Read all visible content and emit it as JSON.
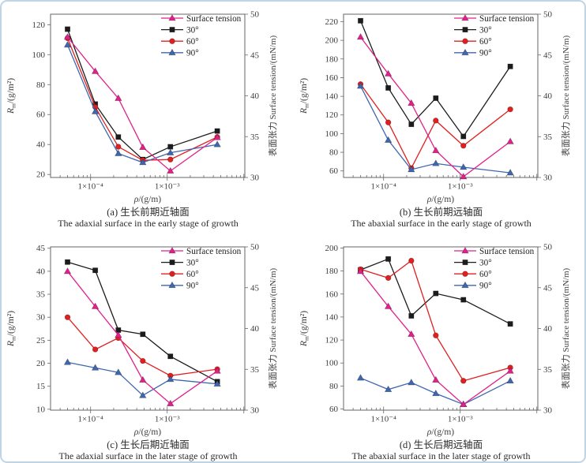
{
  "figure": {
    "background": "#ffffff",
    "border_color": "#bfd5e5"
  },
  "colors": {
    "surface_tension": "#e0218a",
    "deg30": "#1c1c1c",
    "deg60": "#e02020",
    "deg90": "#3f66ae",
    "axis": "#666666",
    "tick_text": "#3d3d3d",
    "legend_text": "#1f1f1f"
  },
  "shared": {
    "x_values": [
      5e-05,
      0.000115,
      0.00023,
      0.00048,
      0.0011,
      0.0045
    ],
    "x_range": [
      3e-05,
      0.0103
    ],
    "x_ticks": [
      {
        "v": 0.0001,
        "label": "1×10⁻⁴"
      },
      {
        "v": 0.001,
        "label": "1×10⁻³"
      }
    ],
    "xlabel": {
      "sym": "ρ",
      "rest": "/(g/m)"
    },
    "ylabel_left": {
      "sym": "R",
      "sub": "m",
      "rest": "/(g/m²)"
    },
    "ylabel_right": "表面张力 Surface tension/(mN/m)",
    "right_axis": {
      "min": 30,
      "max": 50,
      "ticks": [
        30,
        35,
        40,
        45,
        50
      ]
    },
    "legend_labels": [
      "Surface tension",
      "30°",
      "60°",
      "90°"
    ]
  },
  "chart_data": [
    {
      "id": "a",
      "type": "line",
      "caption_cn": "(a) 生长前期近轴面",
      "caption_en": "The adaxial surface in the early stage of growth",
      "left_axis": {
        "min": 18,
        "max": 127,
        "ticks": [
          20,
          40,
          60,
          80,
          100,
          120
        ]
      },
      "series": [
        {
          "name": "Surface tension",
          "axis": "right",
          "marker": "triangle",
          "color_key": "surface_tension",
          "values": [
            47.2,
            43.0,
            39.7,
            33.7,
            30.8,
            34.9
          ]
        },
        {
          "name": "30°",
          "axis": "left",
          "marker": "square",
          "color_key": "deg30",
          "values": [
            117,
            67,
            45,
            30,
            38.5,
            49
          ]
        },
        {
          "name": "60°",
          "axis": "left",
          "marker": "circle",
          "color_key": "deg60",
          "values": [
            111,
            65,
            38.5,
            29.5,
            30,
            45
          ]
        },
        {
          "name": "90°",
          "axis": "left",
          "marker": "triangle",
          "color_key": "deg90",
          "values": [
            106.5,
            62,
            34,
            28,
            34.5,
            40
          ]
        }
      ]
    },
    {
      "id": "b",
      "type": "line",
      "caption_cn": "(b) 生长前期远轴面",
      "caption_en": "The abaxial surface in the early stage of growth",
      "left_axis": {
        "min": 53,
        "max": 228,
        "ticks": [
          60,
          80,
          100,
          120,
          140,
          160,
          180,
          200,
          220
        ]
      },
      "series": [
        {
          "name": "Surface tension",
          "axis": "right",
          "marker": "triangle",
          "color_key": "surface_tension",
          "values": [
            47.2,
            42.7,
            39.1,
            33.3,
            30.1,
            34.4
          ]
        },
        {
          "name": "30°",
          "axis": "left",
          "marker": "square",
          "color_key": "deg30",
          "values": [
            221,
            149,
            110,
            138,
            97,
            172
          ]
        },
        {
          "name": "60°",
          "axis": "left",
          "marker": "circle",
          "color_key": "deg60",
          "values": [
            153,
            112,
            63,
            114,
            87,
            126
          ]
        },
        {
          "name": "90°",
          "axis": "left",
          "marker": "triangle",
          "color_key": "deg90",
          "values": [
            151,
            93,
            61.5,
            68,
            64,
            58
          ]
        }
      ]
    },
    {
      "id": "c",
      "type": "line",
      "caption_cn": "(c) 生长后期近轴面",
      "caption_en": "The adaxial surface in the later stage of growth",
      "left_axis": {
        "min": 9.8,
        "max": 45.3,
        "ticks": [
          10,
          15,
          20,
          25,
          30,
          35,
          40,
          45
        ]
      },
      "series": [
        {
          "name": "Surface tension",
          "axis": "right",
          "marker": "triangle",
          "color_key": "surface_tension",
          "values": [
            47.0,
            42.7,
            39.2,
            33.7,
            30.8,
            34.8
          ]
        },
        {
          "name": "30°",
          "axis": "left",
          "marker": "square",
          "color_key": "deg30",
          "values": [
            42,
            40.2,
            27.2,
            26.3,
            21.5,
            16
          ]
        },
        {
          "name": "60°",
          "axis": "left",
          "marker": "circle",
          "color_key": "deg60",
          "values": [
            30,
            23,
            25.5,
            20.5,
            17.3,
            18.7
          ]
        },
        {
          "name": "90°",
          "axis": "left",
          "marker": "triangle",
          "color_key": "deg90",
          "values": [
            20.2,
            19,
            18,
            13,
            16.5,
            15.5
          ]
        }
      ]
    },
    {
      "id": "d",
      "type": "line",
      "caption_cn": "(d) 生长后期远轴面",
      "caption_en": "The abaxial surface in the later stage of growth",
      "left_axis": {
        "min": 59,
        "max": 201,
        "ticks": [
          60,
          80,
          100,
          120,
          140,
          160,
          180,
          200
        ]
      },
      "series": [
        {
          "name": "Surface tension",
          "axis": "right",
          "marker": "triangle",
          "color_key": "surface_tension",
          "values": [
            47.0,
            42.7,
            39.3,
            33.7,
            30.7,
            34.8
          ]
        },
        {
          "name": "30°",
          "axis": "left",
          "marker": "square",
          "color_key": "deg30",
          "values": [
            181,
            190.5,
            141,
            160.5,
            155,
            134
          ]
        },
        {
          "name": "60°",
          "axis": "left",
          "marker": "circle",
          "color_key": "deg60",
          "values": [
            181.5,
            174,
            189,
            124,
            84.5,
            96
          ]
        },
        {
          "name": "90°",
          "axis": "left",
          "marker": "triangle",
          "color_key": "deg90",
          "values": [
            87,
            77,
            83,
            73.5,
            64,
            84.5
          ]
        }
      ]
    }
  ]
}
